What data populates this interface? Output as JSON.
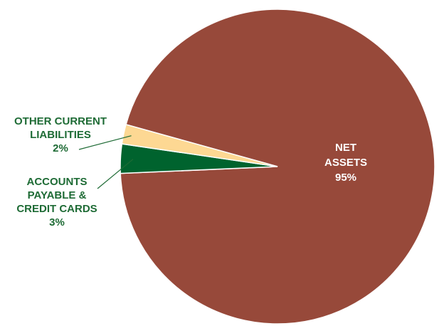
{
  "chart_data": {
    "type": "pie",
    "title": "",
    "slices": [
      {
        "label_lines": [
          "NET",
          "ASSETS"
        ],
        "value": 95,
        "value_label": "95%",
        "color": "#97493a",
        "label_color": "#ffffff"
      },
      {
        "label_lines": [
          "ACCOUNTS",
          "PAYABLE &",
          "CREDIT CARDS"
        ],
        "value": 3,
        "value_label": "3%",
        "color": "#00632e",
        "label_color": "#1e6b35"
      },
      {
        "label_lines": [
          "OTHER CURRENT",
          "LIABILITIES"
        ],
        "value": 2,
        "value_label": "2%",
        "color": "#fdd893",
        "label_color": "#1e6b35"
      }
    ],
    "legend": "none"
  }
}
